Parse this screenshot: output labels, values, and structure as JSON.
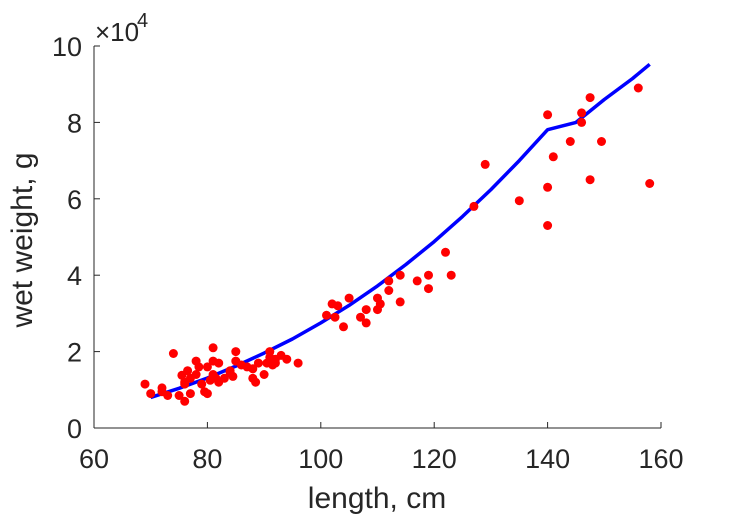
{
  "chart_data": {
    "type": "scatter",
    "xlabel": "length, cm",
    "ylabel": "wet weight, g",
    "exponent_label": "×10",
    "exponent_power": "4",
    "xlim": [
      60,
      160
    ],
    "ylim": [
      0,
      100000
    ],
    "x_ticks": [
      "60",
      "80",
      "100",
      "120",
      "140",
      "160"
    ],
    "y_ticks": [
      "0",
      "2",
      "4",
      "6",
      "8",
      "10"
    ],
    "x_tick_values": [
      60,
      80,
      100,
      120,
      140,
      160
    ],
    "y_tick_values": [
      0,
      20000,
      40000,
      60000,
      80000,
      100000
    ],
    "grid": false,
    "colors": {
      "points": "#ff0000",
      "fit": "#0000ff",
      "axis": "#262626"
    },
    "series": [
      {
        "type": "scatter",
        "x": [
          69.0,
          70.0,
          72.0,
          72.0,
          73.0,
          74.0,
          75.0,
          75.5,
          76.0,
          76.0,
          76.0,
          76.5,
          77.0,
          77.0,
          78.0,
          78.0,
          78.5,
          79.0,
          79.5,
          80.0,
          80.0,
          80.5,
          81.0,
          81.0,
          81.0,
          81.5,
          82.0,
          82.0,
          83.0,
          84.0,
          84.0,
          84.5,
          85.0,
          85.0,
          86.0,
          87.0,
          88.0,
          88.0,
          88.5,
          89.0,
          90.0,
          90.5,
          91.0,
          91.0,
          91.5,
          92.0,
          92.0,
          93.0,
          94.0,
          96.0,
          101.0,
          102.0,
          102.5,
          103.0,
          104.0,
          105.0,
          107.0,
          108.0,
          108.0,
          110.0,
          110.0,
          110.5,
          112.0,
          112.0,
          114.0,
          114.0,
          117.0,
          119.0,
          119.0,
          122.0,
          123.0,
          127.0,
          129.0,
          135.0,
          140.0,
          140.0,
          140.0,
          141.0,
          144.0,
          146.0,
          146.0,
          147.5,
          147.5,
          149.5,
          156.0,
          158.0
        ],
        "y": [
          11500,
          9000,
          10500,
          9500,
          8500,
          19500,
          8500,
          13800,
          11500,
          12000,
          7000,
          15000,
          9000,
          13000,
          17500,
          14000,
          16000,
          11500,
          9500,
          16000,
          9000,
          12500,
          21000,
          17500,
          14000,
          13000,
          12000,
          17000,
          13000,
          15000,
          14500,
          13500,
          20000,
          17500,
          16500,
          16000,
          15500,
          13000,
          12000,
          17000,
          14000,
          17000,
          20000,
          18500,
          16500,
          17000,
          18000,
          19000,
          18000,
          17000,
          29500,
          32500,
          29000,
          32000,
          26500,
          34000,
          29000,
          27500,
          31000,
          34000,
          31000,
          32500,
          36000,
          38500,
          33000,
          40000,
          38500,
          36500,
          40000,
          46000,
          40000,
          58000,
          69000,
          59500,
          82000,
          53000,
          63000,
          71000,
          75000,
          80000,
          82500,
          86500,
          65000,
          75000,
          89000,
          64000
        ]
      },
      {
        "type": "line",
        "name": "",
        "x": [
          70,
          75,
          80,
          85,
          90,
          95,
          100,
          105,
          110,
          115,
          120,
          125,
          130,
          135,
          140,
          145,
          150,
          155,
          158
        ],
        "y": [
          8000,
          10400,
          13100,
          16200,
          19600,
          23300,
          27500,
          32100,
          37200,
          42800,
          48800,
          55400,
          62400,
          70000,
          78100,
          80000,
          86000,
          91500,
          95200
        ]
      }
    ]
  }
}
